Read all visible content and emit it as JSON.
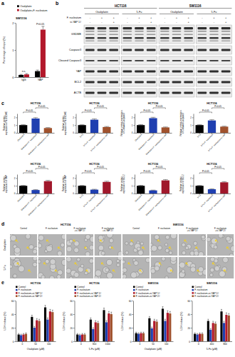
{
  "panel_labels": [
    "a",
    "b",
    "c",
    "d",
    "e"
  ],
  "chart_data": [
    {
      "type": "bar",
      "title": "SW1116",
      "categories": [
        "IgG",
        "YAP"
      ],
      "y_label": "Percentage of input (%)",
      "series": [
        {
          "name": "Oxaliplatin",
          "color": "#000000",
          "values": [
            0.08,
            0.22
          ],
          "errors": [
            0.02,
            0.04
          ]
        },
        {
          "name": "Oxaliplatin+F. nucleatum",
          "color": "#b2182b",
          "values": [
            0.1,
            1.75
          ],
          "errors": [
            0.03,
            0.12
          ]
        }
      ],
      "annotations": [
        "n.s.",
        "P<0.05"
      ],
      "ylim": [
        0,
        2
      ],
      "yticks": [
        0,
        1,
        2
      ],
      "legend": "top"
    },
    {
      "type": "bar",
      "title": "HCT116",
      "categories": [
        "Oxaliplatin",
        "Oxaliplatin+F. nucleatum",
        "Oxaliplatin+F. nucleatum+si-YAP"
      ],
      "values": [
        1,
        1.85,
        0.62
      ],
      "errors": [
        0.05,
        0.12,
        0.06
      ],
      "colors": [
        "#000000",
        "#1f3fb0",
        "#a0522d"
      ],
      "y_label": "Relative protein expression of N-GSDME",
      "comparisons": [
        "P<0.05",
        "P<0.05"
      ],
      "ylim": [
        0,
        2.5
      ],
      "yticks": [
        0,
        1,
        2
      ]
    },
    {
      "type": "bar",
      "title": "HCT116",
      "categories": [
        "5-Fu",
        "5-Fu+F. nucleatum",
        "5-Fu+F. nucleatum+si-YAP"
      ],
      "values": [
        1,
        1.7,
        0.75
      ],
      "errors": [
        0.05,
        0.1,
        0.07
      ],
      "colors": [
        "#000000",
        "#1f3fb0",
        "#a0522d"
      ],
      "y_label": "Relative protein expression of N-GSDME",
      "comparisons": [
        "P<0.05",
        "P<0.05"
      ],
      "ylim": [
        0,
        2.5
      ],
      "yticks": [
        0,
        1,
        2
      ]
    },
    {
      "type": "bar",
      "title": "HCT116",
      "categories": [
        "Oxaliplatin",
        "Oxaliplatin+F. nucleatum",
        "Oxaliplatin+F. nucleatum+si-YAP"
      ],
      "values": [
        1,
        1.9,
        0.7
      ],
      "errors": [
        0.06,
        0.11,
        0.06
      ],
      "colors": [
        "#000000",
        "#1f3fb0",
        "#a0522d"
      ],
      "y_label": "Relative protein expression of Cleaved Caspase3",
      "comparisons": [
        "P<0.05",
        "P<0.05"
      ],
      "ylim": [
        0,
        2.5
      ],
      "yticks": [
        0,
        1,
        2
      ]
    },
    {
      "type": "bar",
      "title": "HCT116",
      "categories": [
        "5-Fu",
        "5-Fu+F. nucleatum",
        "5-Fu+F. nucleatum+si-YAP"
      ],
      "values": [
        1,
        1.6,
        0.8
      ],
      "errors": [
        0.05,
        0.1,
        0.06
      ],
      "colors": [
        "#000000",
        "#1f3fb0",
        "#a0522d"
      ],
      "y_label": "Relative protein expression of Cleaved Caspase3",
      "comparisons": [
        "P<0.05",
        "P<0.05"
      ],
      "ylim": [
        0,
        2.5
      ],
      "yticks": [
        0,
        1,
        2
      ]
    },
    {
      "type": "bar",
      "title": "HCT116",
      "categories": [
        "Oxaliplatin",
        "Oxaliplatin+F. nucleatum",
        "Oxaliplatin+F. nucleatum+si-YAP"
      ],
      "values": [
        1,
        0.45,
        1.6
      ],
      "errors": [
        0.05,
        0.05,
        0.1
      ],
      "colors": [
        "#000000",
        "#1f3fb0",
        "#a0182b"
      ],
      "y_label": "Relative protein expression of YAP",
      "comparisons": [
        "P<0.05",
        "P<0.05"
      ],
      "ylim": [
        0,
        2.5
      ],
      "yticks": [
        0,
        1,
        2
      ]
    },
    {
      "type": "bar",
      "title": "HCT116",
      "categories": [
        "5-Fu",
        "5-Fu+F. nucleatum",
        "5-Fu+F. nucleatum+si-YAP"
      ],
      "values": [
        1,
        0.5,
        1.5
      ],
      "errors": [
        0.05,
        0.05,
        0.09
      ],
      "colors": [
        "#000000",
        "#1f3fb0",
        "#a0182b"
      ],
      "y_label": "Relative protein expression of YAP",
      "comparisons": [
        "P<0.05",
        "P<0.05"
      ],
      "ylim": [
        0,
        2.5
      ],
      "yticks": [
        0,
        1,
        2
      ]
    },
    {
      "type": "bar",
      "title": "HCT116",
      "categories": [
        "Oxaliplatin",
        "Oxaliplatin+F. nucleatum",
        "Oxaliplatin+F. nucleatum+si-YAP"
      ],
      "values": [
        1,
        0.4,
        1.7
      ],
      "errors": [
        0.06,
        0.04,
        0.1
      ],
      "colors": [
        "#000000",
        "#1f3fb0",
        "#a0182b"
      ],
      "y_label": "Relative protein expression of BCL2",
      "comparisons": [
        "P<0.05",
        "P<0.05"
      ],
      "ylim": [
        0,
        2.5
      ],
      "yticks": [
        0,
        1,
        2
      ]
    },
    {
      "type": "bar",
      "title": "HCT116",
      "categories": [
        "5-Fu",
        "5-Fu+F. nucleatum",
        "5-Fu+F. nucleatum+si-YAP"
      ],
      "values": [
        1,
        0.55,
        1.45
      ],
      "errors": [
        0.05,
        0.05,
        0.09
      ],
      "colors": [
        "#000000",
        "#1f3fb0",
        "#a0182b"
      ],
      "y_label": "Relative protein expression of BCL2",
      "comparisons": [
        "P<0.05",
        "P<0.05"
      ],
      "ylim": [
        0,
        2.5
      ],
      "yticks": [
        0,
        1,
        2
      ]
    },
    {
      "type": "bar",
      "title": "HCT116",
      "x_label": "Oxaliplatin (μM)",
      "y_label": "LDH release (%)",
      "categories": [
        "0",
        "50",
        "100"
      ],
      "legend": "top",
      "ylim": [
        0,
        60
      ],
      "yticks": [
        0,
        20,
        40,
        60
      ],
      "series": [
        {
          "name": "Control",
          "color": "#000000",
          "values": [
            10,
            36,
            50
          ],
          "errors": [
            1.5,
            2.5,
            3
          ]
        },
        {
          "name": "F. nucleatum",
          "color": "#1f3fb0",
          "values": [
            9,
            20,
            32
          ],
          "errors": [
            1.5,
            2,
            2.5
          ]
        },
        {
          "name": "F. nucleatum+si-YAP 1#",
          "color": "#b2182b",
          "values": [
            10,
            31,
            44
          ],
          "errors": [
            1.5,
            2.5,
            3
          ]
        },
        {
          "name": "F. nucleatum+si-YAP 2#",
          "color": "#a0522d",
          "values": [
            11,
            30,
            43
          ],
          "errors": [
            1.5,
            2.5,
            3
          ]
        }
      ]
    },
    {
      "type": "bar",
      "title": "HCT116",
      "x_label": "5-Fu (μM)",
      "y_label": "LDH release (%)",
      "categories": [
        "0",
        "300",
        "1000"
      ],
      "legend": "top",
      "ylim": [
        0,
        60
      ],
      "yticks": [
        0,
        20,
        40,
        60
      ],
      "series": [
        {
          "name": "Control",
          "color": "#000000",
          "values": [
            10,
            32,
            46
          ],
          "errors": [
            1.5,
            2.5,
            3
          ]
        },
        {
          "name": "F. nucleatum",
          "color": "#1f3fb0",
          "values": [
            9,
            18,
            28
          ],
          "errors": [
            1.5,
            2,
            2.5
          ]
        },
        {
          "name": "F. nucleatum+si-YAP 1#",
          "color": "#b2182b",
          "values": [
            10,
            28,
            41
          ],
          "errors": [
            1.5,
            2.5,
            3
          ]
        },
        {
          "name": "F. nucleatum+si-YAP 2#",
          "color": "#a0522d",
          "values": [
            10,
            27,
            40
          ],
          "errors": [
            1.5,
            2.5,
            3
          ]
        }
      ]
    },
    {
      "type": "bar",
      "title": "SW1116",
      "x_label": "Oxaliplatin (μM)",
      "y_label": "LDH release (%)",
      "categories": [
        "0",
        "50",
        "100"
      ],
      "legend": "top",
      "ylim": [
        0,
        60
      ],
      "yticks": [
        0,
        20,
        40,
        60
      ],
      "series": [
        {
          "name": "Control",
          "color": "#000000",
          "values": [
            12,
            34,
            48
          ],
          "errors": [
            1.5,
            2.5,
            3
          ]
        },
        {
          "name": "F. nucleatum",
          "color": "#1f3fb0",
          "values": [
            11,
            19,
            30
          ],
          "errors": [
            1.5,
            2,
            2.5
          ]
        },
        {
          "name": "F. nucleatum+si-YAP 1#",
          "color": "#b2182b",
          "values": [
            12,
            30,
            42
          ],
          "errors": [
            1.5,
            2.5,
            3
          ]
        },
        {
          "name": "F. nucleatum+si-YAP 2#",
          "color": "#a0522d",
          "values": [
            12,
            29,
            41
          ],
          "errors": [
            1.5,
            2.5,
            3
          ]
        }
      ]
    },
    {
      "type": "bar",
      "title": "SW1116",
      "x_label": "5-Fu (μM)",
      "y_label": "LDH release (%)",
      "categories": [
        "0",
        "400",
        "800"
      ],
      "legend": "top",
      "ylim": [
        0,
        60
      ],
      "yticks": [
        0,
        20,
        40,
        60
      ],
      "series": [
        {
          "name": "Control",
          "color": "#000000",
          "values": [
            11,
            30,
            44
          ],
          "errors": [
            1.5,
            2.5,
            3
          ]
        },
        {
          "name": "F. nucleatum",
          "color": "#1f3fb0",
          "values": [
            10,
            17,
            27
          ],
          "errors": [
            1.5,
            2,
            2.5
          ]
        },
        {
          "name": "F. nucleatum+si-YAP 1#",
          "color": "#b2182b",
          "values": [
            11,
            27,
            39
          ],
          "errors": [
            1.5,
            2.5,
            3
          ]
        },
        {
          "name": "F. nucleatum+si-YAP 2#",
          "color": "#a0522d",
          "values": [
            11,
            26,
            38
          ],
          "errors": [
            1.5,
            2.5,
            3
          ]
        }
      ]
    }
  ],
  "blot": {
    "groups": [
      {
        "cell_line": "HCT116",
        "drugs": [
          "Oxaliplatin",
          "5-Fu"
        ]
      },
      {
        "cell_line": "SW1116",
        "drugs": [
          "Oxaliplatin",
          "5-Fu"
        ]
      }
    ],
    "treatments": [
      {
        "label": "F. nucleatum",
        "signs": [
          "-",
          "+",
          "+"
        ]
      },
      {
        "label": "si-YAP 1#",
        "signs": [
          "-",
          "-",
          "+"
        ]
      }
    ],
    "proteins": [
      "GSDME",
      "Caspase3",
      "Cleaved Caspase3",
      "YAP",
      "BCL2",
      "ACTB"
    ]
  },
  "micrographs": {
    "cell_lines": [
      "HCT116",
      "SW1116"
    ],
    "conditions": [
      "Control",
      "F. nucleatum",
      "F. nucleatum +si-YAP 1#",
      "F. nucleatum +si-YAP 2#"
    ],
    "drugs": [
      "Oxaliplatin",
      "5-Fu"
    ]
  }
}
